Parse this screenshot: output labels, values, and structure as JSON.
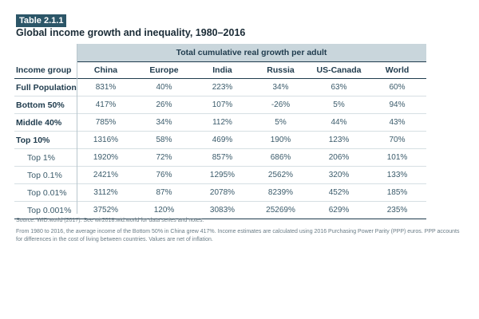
{
  "badge": "Table 2.1.1",
  "title": "Global income growth and inequality, 1980–2016",
  "table": {
    "super_header": "Total cumulative real growth per adult",
    "corner_label": "Income group",
    "columns": [
      "China",
      "Europe",
      "India",
      "Russia",
      "US-Canada",
      "World"
    ],
    "rows": [
      {
        "label": "Full Population",
        "values": [
          "831%",
          "40%",
          "223%",
          "34%",
          "63%",
          "60%"
        ]
      },
      {
        "label": "Bottom 50%",
        "values": [
          "417%",
          "26%",
          "107%",
          "-26%",
          "5%",
          "94%"
        ]
      },
      {
        "label": "Middle 40%",
        "values": [
          "785%",
          "34%",
          "112%",
          "5%",
          "44%",
          "43%"
        ]
      },
      {
        "label": "Top 10%",
        "values": [
          "1316%",
          "58%",
          "469%",
          "190%",
          "123%",
          "70%"
        ]
      },
      {
        "label": "Top 1%",
        "values": [
          "1920%",
          "72%",
          "857%",
          "686%",
          "206%",
          "101%"
        ]
      },
      {
        "label": "Top 0.1%",
        "values": [
          "2421%",
          "76%",
          "1295%",
          "2562%",
          "320%",
          "133%"
        ]
      },
      {
        "label": "Top 0.01%",
        "values": [
          "3112%",
          "87%",
          "2078%",
          "8239%",
          "452%",
          "185%"
        ]
      },
      {
        "label": "Top 0.001%",
        "values": [
          "3752%",
          "120%",
          "3083%",
          "25269%",
          "629%",
          "235%"
        ]
      }
    ]
  },
  "notes": {
    "source": "Source: WID.world (2017). See wir2018.wid.world for data series and notes.",
    "detail": "From 1980 to 2016, the average income of the Bottom 50% in China grew 417%. Income estimates are calculated using 2016 Purchasing Power Parity (PPP) euros. PPP accounts for differences in the cost of living between countries. Values are net of inflation."
  }
}
